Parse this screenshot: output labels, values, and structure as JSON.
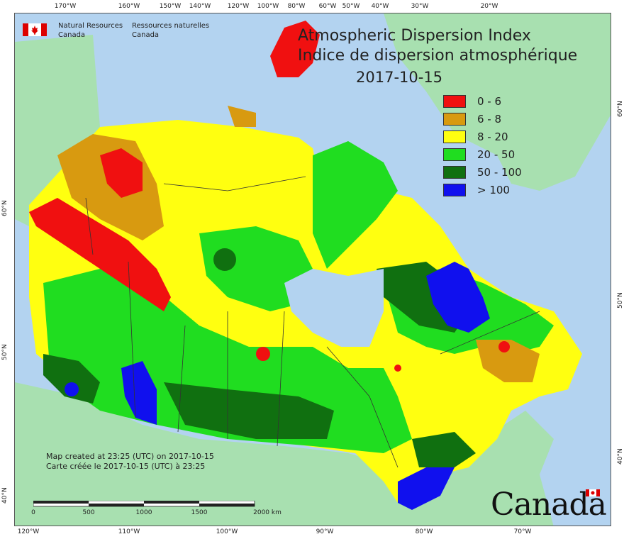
{
  "title": {
    "en": "Atmospheric Dispersion Index",
    "fr": "Indice de dispersion atmosphérique",
    "date": "2017-10-15"
  },
  "agency": {
    "en_line1": "Natural Resources",
    "en_line2": "Canada",
    "fr_line1": "Ressources naturelles",
    "fr_line2": "Canada"
  },
  "legend": [
    {
      "label": "0 - 6",
      "color": "#f01010"
    },
    {
      "label": "6 - 8",
      "color": "#d89a10"
    },
    {
      "label": "8 - 20",
      "color": "#ffff10"
    },
    {
      "label": "20 - 50",
      "color": "#20dd20"
    },
    {
      "label": "50 - 100",
      "color": "#107010"
    },
    {
      "label": "> 100",
      "color": "#1010ee"
    }
  ],
  "created": {
    "en": "Map created at 23:25 (UTC) on 2017-10-15",
    "fr": "Carte créée le 2017-10-15 (UTC) à 23:25"
  },
  "wordmark": "Canada",
  "scale": {
    "labels": [
      "0",
      "500",
      "1000",
      "1500",
      "2000  km"
    ]
  },
  "graticule": {
    "top": [
      "170°W",
      "160°W",
      "150°W",
      "140°W",
      "120°W",
      "100°W",
      "80°W",
      "60°W",
      "50°W",
      "40°W",
      "30°W",
      "20°W"
    ],
    "bottom": [
      "120°W",
      "110°W",
      "100°W",
      "90°W",
      "80°W",
      "70°W"
    ],
    "left": [
      "60°N",
      "50°N",
      "40°N"
    ],
    "right": [
      "60°N",
      "50°N",
      "40°N"
    ]
  },
  "colors": {
    "ocean": "#b3d3f0",
    "foreign_land": "#a8e0b0"
  }
}
